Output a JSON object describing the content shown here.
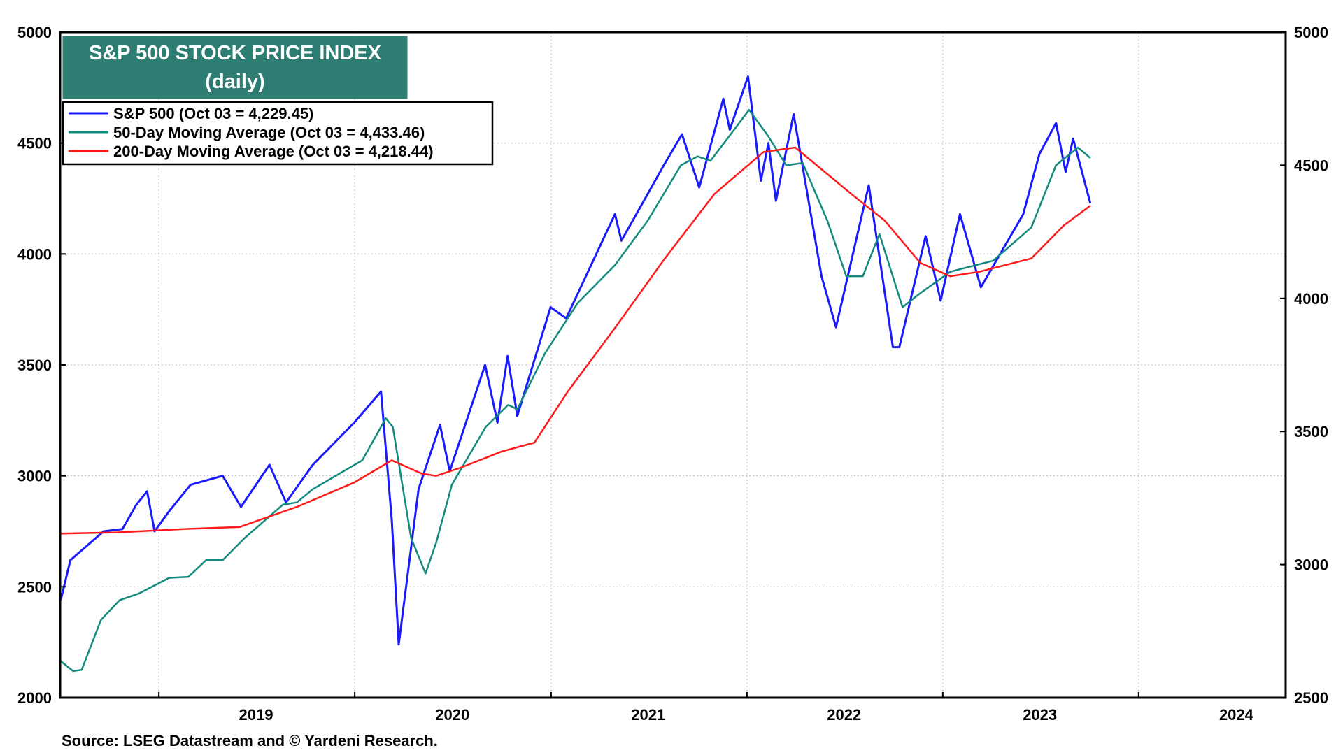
{
  "chart_data": {
    "type": "line",
    "title": "S&P 500 STOCK PRICE INDEX",
    "subtitle": "(daily)",
    "source": "Source: LSEG Datastream and © Yardeni Research.",
    "x_range": [
      "2018-07-01",
      "2024-10-01"
    ],
    "x_tick_labels": [
      "2019",
      "2020",
      "2021",
      "2022",
      "2023",
      "2024"
    ],
    "y_left": {
      "range": [
        2000,
        5000
      ],
      "ticks": [
        "2000",
        "2500",
        "3000",
        "3500",
        "4000",
        "4500",
        "5000"
      ]
    },
    "y_right": {
      "range": [
        2500,
        5000
      ],
      "ticks": [
        "2500",
        "3000",
        "3500",
        "4000",
        "4500",
        "5000"
      ]
    },
    "grid": true,
    "legend_position": "top-left",
    "series": [
      {
        "name": "S&P 500 (Oct 03 = 4,229.45)",
        "color": "#1a1aff",
        "points": [
          [
            "2018-07-02",
            2440
          ],
          [
            "2018-07-20",
            2620
          ],
          [
            "2018-09-20",
            2750
          ],
          [
            "2018-10-25",
            2760
          ],
          [
            "2018-11-20",
            2870
          ],
          [
            "2018-12-10",
            2930
          ],
          [
            "2018-12-24",
            2750
          ],
          [
            "2019-01-20",
            2840
          ],
          [
            "2019-03-01",
            2960
          ],
          [
            "2019-04-30",
            3000
          ],
          [
            "2019-06-03",
            2860
          ],
          [
            "2019-07-26",
            3050
          ],
          [
            "2019-08-26",
            2880
          ],
          [
            "2019-10-15",
            3050
          ],
          [
            "2019-12-31",
            3240
          ],
          [
            "2020-02-19",
            3380
          ],
          [
            "2020-03-10",
            2800
          ],
          [
            "2020-03-23",
            2240
          ],
          [
            "2020-04-29",
            2940
          ],
          [
            "2020-06-08",
            3230
          ],
          [
            "2020-06-26",
            3020
          ],
          [
            "2020-08-31",
            3500
          ],
          [
            "2020-09-23",
            3240
          ],
          [
            "2020-10-12",
            3540
          ],
          [
            "2020-10-30",
            3270
          ],
          [
            "2020-12-31",
            3760
          ],
          [
            "2021-01-29",
            3710
          ],
          [
            "2021-04-30",
            4180
          ],
          [
            "2021-05-12",
            4060
          ],
          [
            "2021-07-30",
            4400
          ],
          [
            "2021-09-02",
            4540
          ],
          [
            "2021-10-04",
            4300
          ],
          [
            "2021-11-18",
            4700
          ],
          [
            "2021-11-30",
            4560
          ],
          [
            "2022-01-03",
            4800
          ],
          [
            "2022-01-27",
            4330
          ],
          [
            "2022-02-10",
            4500
          ],
          [
            "2022-02-24",
            4240
          ],
          [
            "2022-03-29",
            4630
          ],
          [
            "2022-05-20",
            3900
          ],
          [
            "2022-06-16",
            3670
          ],
          [
            "2022-08-16",
            4310
          ],
          [
            "2022-09-30",
            3580
          ],
          [
            "2022-10-12",
            3580
          ],
          [
            "2022-11-30",
            4080
          ],
          [
            "2022-12-28",
            3790
          ],
          [
            "2023-02-02",
            4180
          ],
          [
            "2023-03-13",
            3850
          ],
          [
            "2023-05-31",
            4180
          ],
          [
            "2023-06-30",
            4450
          ],
          [
            "2023-07-31",
            4590
          ],
          [
            "2023-08-18",
            4370
          ],
          [
            "2023-09-01",
            4520
          ],
          [
            "2023-10-03",
            4229
          ]
        ]
      },
      {
        "name": "50-Day Moving Average (Oct 03 = 4,433.46)",
        "color": "#138a7e",
        "points": [
          [
            "2018-07-02",
            2165
          ],
          [
            "2018-07-25",
            2120
          ],
          [
            "2018-08-10",
            2125
          ],
          [
            "2018-09-15",
            2350
          ],
          [
            "2018-10-20",
            2440
          ],
          [
            "2018-11-25",
            2470
          ],
          [
            "2019-01-20",
            2540
          ],
          [
            "2019-02-25",
            2545
          ],
          [
            "2019-03-30",
            2620
          ],
          [
            "2019-04-30",
            2620
          ],
          [
            "2019-06-10",
            2720
          ],
          [
            "2019-08-20",
            2870
          ],
          [
            "2019-09-15",
            2880
          ],
          [
            "2019-10-15",
            2940
          ],
          [
            "2020-01-15",
            3070
          ],
          [
            "2020-02-28",
            3260
          ],
          [
            "2020-03-12",
            3220
          ],
          [
            "2020-04-15",
            2720
          ],
          [
            "2020-05-12",
            2560
          ],
          [
            "2020-06-01",
            2700
          ],
          [
            "2020-06-30",
            2960
          ],
          [
            "2020-09-01",
            3220
          ],
          [
            "2020-10-13",
            3320
          ],
          [
            "2020-10-30",
            3300
          ],
          [
            "2020-12-20",
            3550
          ],
          [
            "2021-02-20",
            3780
          ],
          [
            "2021-04-30",
            3950
          ],
          [
            "2021-06-30",
            4150
          ],
          [
            "2021-08-31",
            4400
          ],
          [
            "2021-10-01",
            4440
          ],
          [
            "2021-10-25",
            4420
          ],
          [
            "2021-12-05",
            4550
          ],
          [
            "2022-01-05",
            4650
          ],
          [
            "2022-02-10",
            4530
          ],
          [
            "2022-03-15",
            4400
          ],
          [
            "2022-04-15",
            4410
          ],
          [
            "2022-05-31",
            4150
          ],
          [
            "2022-07-05",
            3900
          ],
          [
            "2022-08-05",
            3900
          ],
          [
            "2022-09-05",
            4090
          ],
          [
            "2022-10-18",
            3760
          ],
          [
            "2022-11-18",
            3820
          ],
          [
            "2023-01-15",
            3920
          ],
          [
            "2023-04-05",
            3970
          ],
          [
            "2023-06-15",
            4120
          ],
          [
            "2023-07-31",
            4400
          ],
          [
            "2023-09-10",
            4480
          ],
          [
            "2023-10-03",
            4433
          ]
        ]
      },
      {
        "name": "200-Day Moving Average (Oct 03 = 4,218.44)",
        "color": "#ff1a1a",
        "points": [
          [
            "2018-07-02",
            2740
          ],
          [
            "2018-10-15",
            2745
          ],
          [
            "2019-02-15",
            2760
          ],
          [
            "2019-06-01",
            2770
          ],
          [
            "2019-09-15",
            2860
          ],
          [
            "2019-12-31",
            2970
          ],
          [
            "2020-03-10",
            3070
          ],
          [
            "2020-05-05",
            3010
          ],
          [
            "2020-06-01",
            3000
          ],
          [
            "2020-07-20",
            3040
          ],
          [
            "2020-10-01",
            3110
          ],
          [
            "2020-12-01",
            3150
          ],
          [
            "2021-02-01",
            3380
          ],
          [
            "2021-05-01",
            3670
          ],
          [
            "2021-08-01",
            3980
          ],
          [
            "2021-11-01",
            4270
          ],
          [
            "2022-02-01",
            4460
          ],
          [
            "2022-04-01",
            4480
          ],
          [
            "2022-07-15",
            4270
          ],
          [
            "2022-09-15",
            4150
          ],
          [
            "2022-11-20",
            3960
          ],
          [
            "2023-01-15",
            3900
          ],
          [
            "2023-03-10",
            3920
          ],
          [
            "2023-06-15",
            3980
          ],
          [
            "2023-08-15",
            4130
          ],
          [
            "2023-10-03",
            4218
          ]
        ]
      }
    ]
  }
}
